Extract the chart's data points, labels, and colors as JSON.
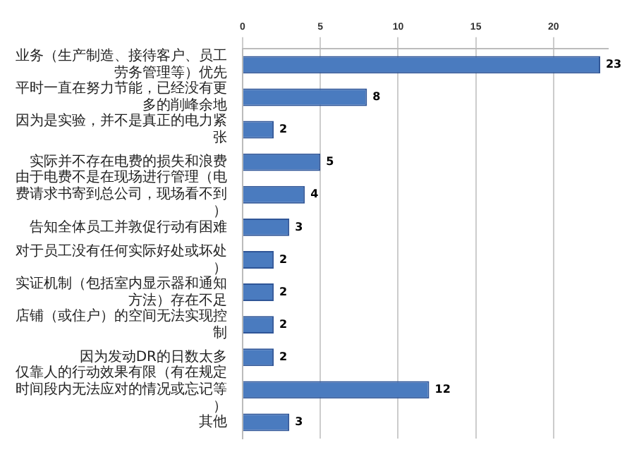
{
  "chart_data": {
    "type": "bar",
    "orientation": "horizontal",
    "categories": [
      "业务（生产制造、接待客户、员工劳务管理等）优先",
      "平时一直在努力节能，已经没有更多的削峰余地",
      "因为是实验，并不是真正的电力紧张",
      "实际并不存在电费的损失和浪费",
      "由于电费不是在现场进行管理（电费请求书寄到总公司，现场看不到）",
      "告知全体员工并敦促行动有困难",
      "对于员工没有任何实际好处或坏处）",
      "实证机制（包括室内显示器和通知方法）存在不足",
      "店铺（或住户）的空间无法实现控制",
      "因为发动DR的日数太多",
      "仅靠人的行动效果有限（有在规定时间段内无法应对的情况或忘记等）",
      "其他"
    ],
    "values": [
      23,
      8,
      2,
      5,
      4,
      3,
      2,
      2,
      2,
      2,
      12,
      3
    ],
    "color": "#4a7bbf",
    "xlim": [
      0,
      23.5
    ],
    "xticks": [
      0,
      5,
      10,
      15,
      20
    ],
    "grid": "x",
    "data_labels": true
  }
}
